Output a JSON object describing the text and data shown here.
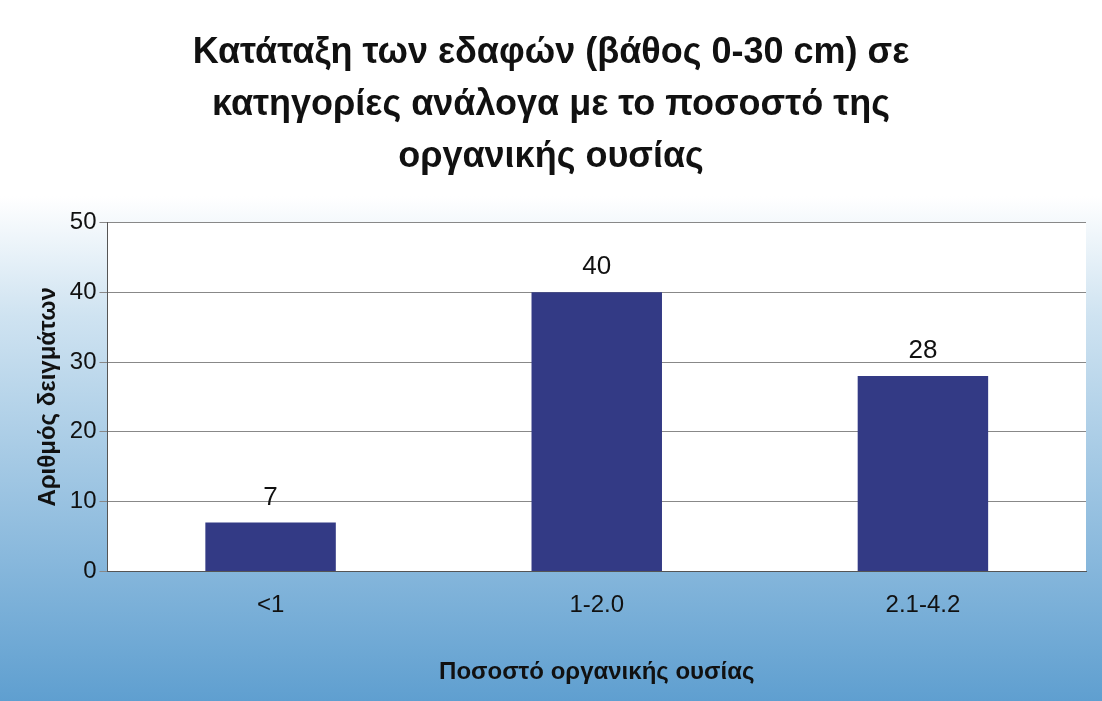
{
  "chart_data": {
    "type": "bar",
    "title": "Κατάταξη των εδαφών (βάθος 0-30 cm) σε κατηγορίες ανάλογα με το ποσοστό της οργανικής ουσίας",
    "xlabel": "Ποσοστό οργανικής ουσίας",
    "ylabel": "Αριθμός δειγμάτων",
    "categories": [
      "<1",
      "1-2.0",
      "2.1-4.2"
    ],
    "values": [
      7,
      40,
      28
    ],
    "color": "#333a85",
    "ylim": [
      0,
      50
    ],
    "yticks": [
      0,
      10,
      20,
      30,
      40,
      50
    ],
    "grid": "y",
    "data_labels": true,
    "legend": false
  }
}
